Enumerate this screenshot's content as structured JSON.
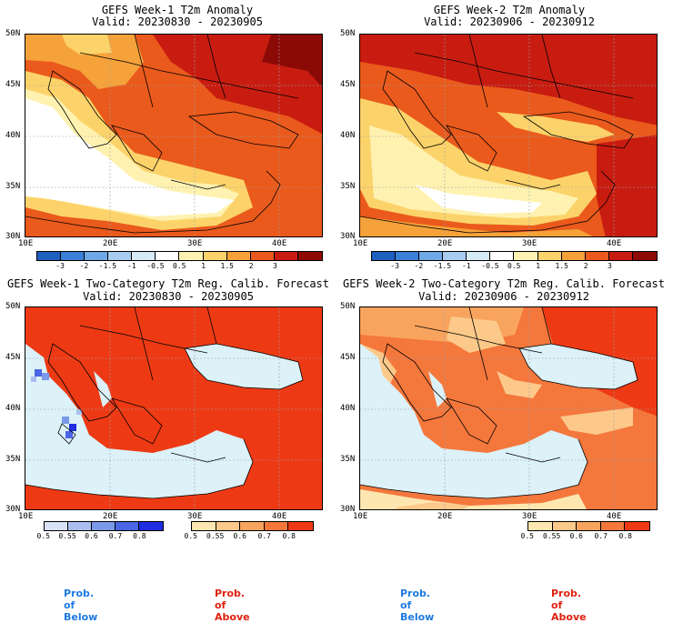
{
  "panels": [
    {
      "title1": "GEFS Week-1 T2m Anomaly",
      "title2": "Valid: 20230830 - 20230905"
    },
    {
      "title1": "GEFS Week-2 T2m Anomaly",
      "title2": "Valid: 20230906 - 20230912"
    },
    {
      "title1": "GEFS Week-1 Two-Category T2m Reg. Calib. Forecast",
      "title2": "Valid: 20230830 - 20230905"
    },
    {
      "title1": "GEFS Week-2 Two-Category T2m Reg. Calib. Forecast",
      "title2": "Valid: 20230906 - 20230912"
    }
  ],
  "axes": {
    "lat_labels": [
      "50N",
      "45N",
      "40N",
      "35N",
      "30N"
    ],
    "lon_labels": [
      "10E",
      "20E",
      "30E",
      "40E"
    ]
  },
  "anomaly_colorbar": {
    "ticks": [
      "-3",
      "-2",
      "-1.5",
      "-1",
      "-0.5",
      "0.5",
      "1",
      "1.5",
      "2",
      "3"
    ],
    "colors": [
      "#1f5fc0",
      "#3a7fd8",
      "#6ea8e6",
      "#a8cdf0",
      "#d6eaf8",
      "#ffffff",
      "#fff2b0",
      "#fcd36a",
      "#f6a23a",
      "#ea5a1c",
      "#c81c10",
      "#8c0a06"
    ]
  },
  "prob_below": {
    "label": "Prob. of Below",
    "ticks": [
      "0.5",
      "0.55",
      "0.6",
      "0.7",
      "0.8"
    ],
    "colors": [
      "#d8e3f7",
      "#aabfef",
      "#7c98e8",
      "#4a66e4",
      "#1e2ee0"
    ]
  },
  "prob_above": {
    "label": "Prob. of Above",
    "ticks": [
      "0.5",
      "0.55",
      "0.6",
      "0.7",
      "0.8"
    ],
    "colors": [
      "#fde6b0",
      "#fcc98a",
      "#f9a45e",
      "#f4773c",
      "#ee3a14"
    ]
  },
  "map_colors": {
    "water": "#dcf1f8",
    "border": "#000000",
    "grid": "#9aa0a6"
  }
}
